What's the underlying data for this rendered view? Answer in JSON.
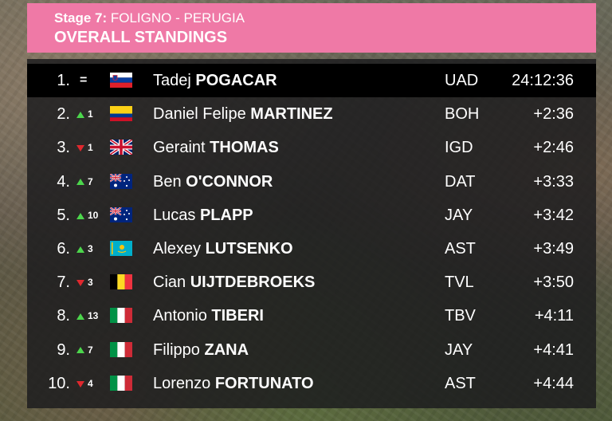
{
  "header": {
    "stage_label": "Stage 7:",
    "stage_route": "FOLIGNO - PERUGIA",
    "title": "OVERALL STANDINGS",
    "color": "#ef79a6"
  },
  "standings": [
    {
      "rank": "1.",
      "change": "=",
      "direction": "same",
      "flag": "slovenia-flag",
      "first": "Tadej",
      "surname": "POGACAR",
      "team": "UAD",
      "time": "24:12:36"
    },
    {
      "rank": "2.",
      "change": "1",
      "direction": "up",
      "flag": "colombia-flag",
      "first": "Daniel Felipe",
      "surname": "MARTINEZ",
      "team": "BOH",
      "time": "+2:36"
    },
    {
      "rank": "3.",
      "change": "1",
      "direction": "down",
      "flag": "uk-flag",
      "first": "Geraint",
      "surname": "THOMAS",
      "team": "IGD",
      "time": "+2:46"
    },
    {
      "rank": "4.",
      "change": "7",
      "direction": "up",
      "flag": "australia-flag",
      "first": "Ben",
      "surname": "O'CONNOR",
      "team": "DAT",
      "time": "+3:33"
    },
    {
      "rank": "5.",
      "change": "10",
      "direction": "up",
      "flag": "australia-flag",
      "first": "Lucas",
      "surname": "PLAPP",
      "team": "JAY",
      "time": "+3:42"
    },
    {
      "rank": "6.",
      "change": "3",
      "direction": "up",
      "flag": "kazakhstan-flag",
      "first": "Alexey",
      "surname": "LUTSENKO",
      "team": "AST",
      "time": "+3:49"
    },
    {
      "rank": "7.",
      "change": "3",
      "direction": "down",
      "flag": "belgium-flag",
      "first": "Cian",
      "surname": "UIJTDEBROEKS",
      "team": "TVL",
      "time": "+3:50"
    },
    {
      "rank": "8.",
      "change": "13",
      "direction": "up",
      "flag": "italy-flag",
      "first": "Antonio",
      "surname": "TIBERI",
      "team": "TBV",
      "time": "+4:11"
    },
    {
      "rank": "9.",
      "change": "7",
      "direction": "up",
      "flag": "italy-flag",
      "first": "Filippo",
      "surname": "ZANA",
      "team": "JAY",
      "time": "+4:41"
    },
    {
      "rank": "10.",
      "change": "4",
      "direction": "down",
      "flag": "italy-flag",
      "first": "Lorenzo",
      "surname": "FORTUNATO",
      "team": "AST",
      "time": "+4:44"
    }
  ]
}
